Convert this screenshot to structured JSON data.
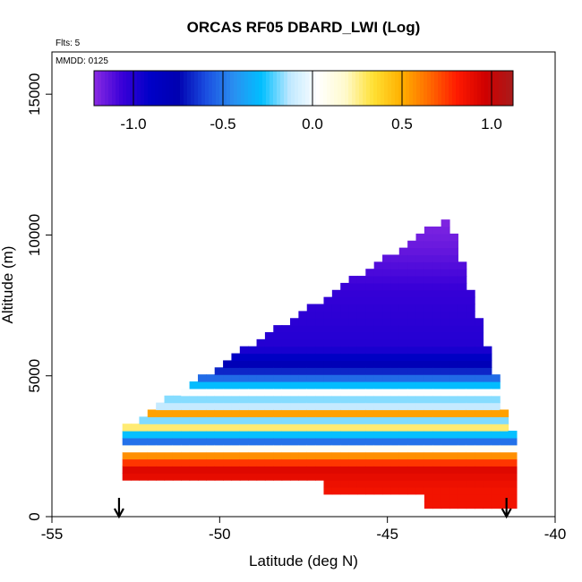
{
  "chart_data": {
    "type": "heatmap",
    "title": "ORCAS RF05 DBARD_LWI (Log)",
    "flights_label": "Flts: 5",
    "date_label": "MMDD: 0125",
    "xlabel": "Latitude (deg N)",
    "ylabel": "Altitude (m)",
    "xlim": [
      -55,
      -40
    ],
    "ylim": [
      0,
      16500
    ],
    "x_ticks": [
      -55,
      -50,
      -45,
      -40
    ],
    "x_tick_labels": [
      "-55",
      "-50",
      "-45",
      "-40"
    ],
    "y_ticks": [
      0,
      5000,
      10000,
      15000
    ],
    "y_tick_labels": [
      "0",
      "5000",
      "10000",
      "15000"
    ],
    "colorbar": {
      "min": -1.22,
      "max": 1.12,
      "ticks": [
        -1.0,
        -0.5,
        0.0,
        0.5,
        1.0
      ],
      "tick_labels": [
        "-1.0",
        "-0.5",
        "0.0",
        "0.5",
        "1.0"
      ],
      "colors": [
        "#8a2be2",
        "#3a00d8",
        "#0000c8",
        "#0000b0",
        "#1a4de0",
        "#2a8ff0",
        "#00bfff",
        "#bfe8ff",
        "#ffffff",
        "#fffacd",
        "#ffe033",
        "#ffb000",
        "#ff6a00",
        "#ff1a00",
        "#d00000",
        "#a81b1b"
      ]
    },
    "field": {
      "lat_min": -52.9,
      "lat_max": -41.35,
      "bottom_alt": 300,
      "top_alt_at_lat": [
        [
          -52.9,
          3000
        ],
        [
          -43.2,
          10500
        ],
        [
          -41.9,
          5500
        ],
        [
          -41.35,
          3000
        ]
      ],
      "layers": [
        {
          "alt": 1000,
          "value": 0.85
        },
        {
          "alt": 1700,
          "value": 0.92
        },
        {
          "alt": 2200,
          "value": 0.55
        },
        {
          "alt": 2500,
          "value": -0.1
        },
        {
          "alt": 2800,
          "value": -0.8
        },
        {
          "alt": 3100,
          "value": 0.45
        },
        {
          "alt": 3400,
          "value": -0.25
        },
        {
          "alt": 3700,
          "value": 0.6
        },
        {
          "alt": 4000,
          "value": -0.35
        },
        {
          "alt": 4400,
          "value": 0.05
        },
        {
          "alt": 4800,
          "value": -0.45
        },
        {
          "alt": 5300,
          "value": -0.75
        },
        {
          "alt": 6000,
          "value": -1.0
        },
        {
          "alt": 8000,
          "value": -1.05
        },
        {
          "alt": 9500,
          "value": -1.15
        },
        {
          "alt": 10500,
          "value": -1.2
        }
      ]
    },
    "markers": [
      {
        "lat": -53.0,
        "label": "↓"
      },
      {
        "lat": -41.45,
        "label": "↓"
      }
    ]
  }
}
